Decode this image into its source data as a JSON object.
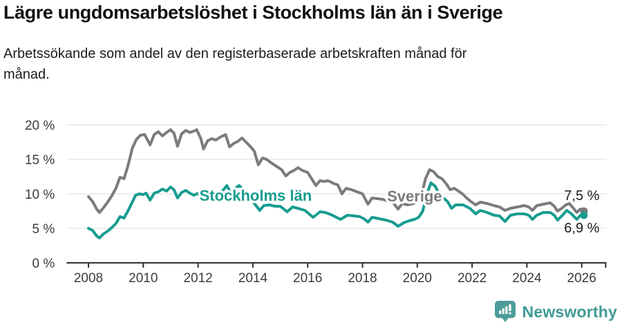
{
  "header": {
    "title": "Lägre ungdomsarbetslöshet i Stockholms län än i Sverige",
    "subtitle": "Arbetssökande som andel av den registerbaserade arbetskraften månad för månad."
  },
  "footer": {
    "brand": "Newsworthy",
    "logo_icon": "bar-chart-speech-bubble-icon",
    "brand_color": "#3f9b95"
  },
  "chart_data": {
    "type": "line",
    "title": "Lägre ungdomsarbetslöshet i Stockholms län än i Sverige",
    "subtitle": "Arbetssökande som andel av den registerbaserade arbetskraften månad för månad.",
    "unit": "%",
    "grid": true,
    "legend_position": "inline-labels",
    "x_axis": {
      "ticks": [
        2008,
        2010,
        2012,
        2014,
        2016,
        2018,
        2020,
        2022,
        2024,
        2026
      ],
      "range": [
        2007.2,
        2026.9
      ]
    },
    "y_axis": {
      "ticks": [
        0,
        5,
        10,
        15,
        20
      ],
      "tick_suffix": " %",
      "range": [
        0,
        22.5
      ]
    },
    "colors": {
      "grid": "#dddddd",
      "axis": "#2f2f2f",
      "tick_text": "#3b3b3b"
    },
    "series": [
      {
        "name": "Sverige",
        "color": "#7b7b7e",
        "end_value": 7.5,
        "end_label": "7,5 %",
        "end_label_side": "above",
        "name_label_pos": {
          "year": 2019.9,
          "pct": 9.7
        },
        "points": [
          [
            2008.0,
            9.6
          ],
          [
            2008.15,
            8.9
          ],
          [
            2008.3,
            7.8
          ],
          [
            2008.4,
            7.3
          ],
          [
            2008.55,
            8.0
          ],
          [
            2008.7,
            8.8
          ],
          [
            2008.85,
            9.7
          ],
          [
            2009.0,
            10.8
          ],
          [
            2009.15,
            12.4
          ],
          [
            2009.3,
            12.2
          ],
          [
            2009.45,
            14.2
          ],
          [
            2009.6,
            16.6
          ],
          [
            2009.75,
            17.9
          ],
          [
            2009.9,
            18.5
          ],
          [
            2010.05,
            18.6
          ],
          [
            2010.25,
            17.1
          ],
          [
            2010.4,
            18.6
          ],
          [
            2010.55,
            19.0
          ],
          [
            2010.7,
            18.4
          ],
          [
            2010.85,
            18.9
          ],
          [
            2011.0,
            19.3
          ],
          [
            2011.12,
            18.8
          ],
          [
            2011.25,
            16.9
          ],
          [
            2011.4,
            18.7
          ],
          [
            2011.55,
            19.2
          ],
          [
            2011.7,
            18.9
          ],
          [
            2011.85,
            19.1
          ],
          [
            2011.95,
            19.3
          ],
          [
            2012.1,
            18.0
          ],
          [
            2012.2,
            16.5
          ],
          [
            2012.35,
            17.7
          ],
          [
            2012.5,
            18.0
          ],
          [
            2012.65,
            17.8
          ],
          [
            2012.8,
            18.2
          ],
          [
            2013.0,
            18.6
          ],
          [
            2013.15,
            16.8
          ],
          [
            2013.3,
            17.3
          ],
          [
            2013.45,
            17.6
          ],
          [
            2013.6,
            18.1
          ],
          [
            2013.75,
            17.5
          ],
          [
            2013.9,
            16.9
          ],
          [
            2014.05,
            16.2
          ],
          [
            2014.2,
            14.2
          ],
          [
            2014.35,
            15.2
          ],
          [
            2014.5,
            15.0
          ],
          [
            2014.7,
            14.4
          ],
          [
            2014.9,
            13.9
          ],
          [
            2015.05,
            13.5
          ],
          [
            2015.2,
            12.6
          ],
          [
            2015.35,
            13.1
          ],
          [
            2015.5,
            13.4
          ],
          [
            2015.65,
            13.8
          ],
          [
            2015.8,
            13.4
          ],
          [
            2016.0,
            13.1
          ],
          [
            2016.3,
            11.2
          ],
          [
            2016.45,
            11.9
          ],
          [
            2016.6,
            11.8
          ],
          [
            2016.75,
            11.9
          ],
          [
            2016.95,
            11.5
          ],
          [
            2017.1,
            11.3
          ],
          [
            2017.25,
            10.0
          ],
          [
            2017.4,
            10.8
          ],
          [
            2017.6,
            10.6
          ],
          [
            2017.8,
            10.3
          ],
          [
            2018.0,
            10.0
          ],
          [
            2018.2,
            8.5
          ],
          [
            2018.35,
            9.4
          ],
          [
            2018.55,
            9.3
          ],
          [
            2018.75,
            9.2
          ],
          [
            2018.95,
            8.9
          ],
          [
            2019.1,
            8.8
          ],
          [
            2019.3,
            7.8
          ],
          [
            2019.45,
            8.6
          ],
          [
            2019.65,
            8.4
          ],
          [
            2019.85,
            8.6
          ],
          [
            2020.0,
            8.8
          ],
          [
            2020.15,
            9.8
          ],
          [
            2020.3,
            12.2
          ],
          [
            2020.45,
            13.5
          ],
          [
            2020.6,
            13.2
          ],
          [
            2020.75,
            12.5
          ],
          [
            2020.9,
            12.2
          ],
          [
            2021.05,
            11.5
          ],
          [
            2021.2,
            10.6
          ],
          [
            2021.35,
            10.8
          ],
          [
            2021.5,
            10.4
          ],
          [
            2021.65,
            10.0
          ],
          [
            2021.8,
            9.4
          ],
          [
            2021.95,
            8.9
          ],
          [
            2022.13,
            8.4
          ],
          [
            2022.3,
            8.8
          ],
          [
            2022.55,
            8.6
          ],
          [
            2022.8,
            8.3
          ],
          [
            2023.0,
            8.1
          ],
          [
            2023.2,
            7.6
          ],
          [
            2023.4,
            7.9
          ],
          [
            2023.65,
            8.1
          ],
          [
            2023.9,
            8.3
          ],
          [
            2024.07,
            8.1
          ],
          [
            2024.2,
            7.6
          ],
          [
            2024.36,
            8.3
          ],
          [
            2024.6,
            8.5
          ],
          [
            2024.85,
            8.7
          ],
          [
            2025.0,
            8.2
          ],
          [
            2025.12,
            7.5
          ],
          [
            2025.27,
            7.9
          ],
          [
            2025.42,
            8.4
          ],
          [
            2025.55,
            8.6
          ],
          [
            2025.7,
            7.9
          ],
          [
            2025.82,
            7.3
          ],
          [
            2025.95,
            7.8
          ],
          [
            2026.08,
            7.5
          ]
        ]
      },
      {
        "name": "Stockholms län",
        "color": "#169c8f",
        "end_value": 6.9,
        "end_label": "6,9 %",
        "end_label_side": "below",
        "name_label_pos": {
          "year": 2014.1,
          "pct": 9.8
        },
        "points": [
          [
            2008.0,
            5.0
          ],
          [
            2008.15,
            4.7
          ],
          [
            2008.3,
            3.9
          ],
          [
            2008.4,
            3.6
          ],
          [
            2008.55,
            4.2
          ],
          [
            2008.7,
            4.6
          ],
          [
            2008.85,
            5.1
          ],
          [
            2009.0,
            5.7
          ],
          [
            2009.15,
            6.7
          ],
          [
            2009.3,
            6.5
          ],
          [
            2009.45,
            7.6
          ],
          [
            2009.6,
            8.8
          ],
          [
            2009.72,
            9.8
          ],
          [
            2009.85,
            10.0
          ],
          [
            2010.0,
            9.9
          ],
          [
            2010.1,
            10.1
          ],
          [
            2010.25,
            9.1
          ],
          [
            2010.4,
            10.1
          ],
          [
            2010.55,
            10.3
          ],
          [
            2010.7,
            10.7
          ],
          [
            2010.85,
            10.4
          ],
          [
            2011.0,
            11.0
          ],
          [
            2011.12,
            10.6
          ],
          [
            2011.25,
            9.4
          ],
          [
            2011.4,
            10.2
          ],
          [
            2011.55,
            10.5
          ],
          [
            2011.7,
            10.1
          ],
          [
            2011.85,
            9.8
          ],
          [
            2012.0,
            10.1
          ],
          [
            2012.2,
            8.9
          ],
          [
            2012.35,
            9.6
          ],
          [
            2012.5,
            9.9
          ],
          [
            2012.65,
            9.8
          ],
          [
            2012.8,
            10.1
          ],
          [
            2012.95,
            10.7
          ],
          [
            2013.05,
            11.2
          ],
          [
            2013.2,
            10.1
          ],
          [
            2013.35,
            10.8
          ],
          [
            2013.5,
            11.2
          ],
          [
            2013.65,
            10.6
          ],
          [
            2013.8,
            9.7
          ],
          [
            2014.0,
            8.9
          ],
          [
            2014.25,
            7.6
          ],
          [
            2014.4,
            8.3
          ],
          [
            2014.6,
            8.4
          ],
          [
            2014.8,
            8.2
          ],
          [
            2015.0,
            8.2
          ],
          [
            2015.25,
            7.4
          ],
          [
            2015.45,
            8.1
          ],
          [
            2015.65,
            7.9
          ],
          [
            2015.9,
            7.6
          ],
          [
            2016.2,
            6.6
          ],
          [
            2016.45,
            7.4
          ],
          [
            2016.65,
            7.3
          ],
          [
            2016.9,
            6.9
          ],
          [
            2017.2,
            6.3
          ],
          [
            2017.45,
            6.9
          ],
          [
            2017.7,
            6.8
          ],
          [
            2017.9,
            6.7
          ],
          [
            2018.05,
            6.4
          ],
          [
            2018.2,
            5.9
          ],
          [
            2018.35,
            6.6
          ],
          [
            2018.6,
            6.4
          ],
          [
            2018.85,
            6.2
          ],
          [
            2019.1,
            5.9
          ],
          [
            2019.3,
            5.3
          ],
          [
            2019.5,
            5.8
          ],
          [
            2019.7,
            6.1
          ],
          [
            2019.9,
            6.3
          ],
          [
            2020.05,
            6.6
          ],
          [
            2020.2,
            7.5
          ],
          [
            2020.35,
            10.0
          ],
          [
            2020.5,
            11.6
          ],
          [
            2020.65,
            11.1
          ],
          [
            2020.8,
            10.0
          ],
          [
            2020.95,
            9.4
          ],
          [
            2021.1,
            8.9
          ],
          [
            2021.25,
            7.9
          ],
          [
            2021.4,
            8.4
          ],
          [
            2021.67,
            8.4
          ],
          [
            2021.92,
            7.9
          ],
          [
            2022.13,
            7.1
          ],
          [
            2022.3,
            7.6
          ],
          [
            2022.55,
            7.3
          ],
          [
            2022.8,
            6.9
          ],
          [
            2023.0,
            6.8
          ],
          [
            2023.2,
            6.0
          ],
          [
            2023.4,
            6.9
          ],
          [
            2023.65,
            7.1
          ],
          [
            2023.9,
            7.1
          ],
          [
            2024.07,
            6.9
          ],
          [
            2024.2,
            6.3
          ],
          [
            2024.36,
            6.9
          ],
          [
            2024.6,
            7.3
          ],
          [
            2024.85,
            7.3
          ],
          [
            2025.0,
            6.9
          ],
          [
            2025.12,
            6.2
          ],
          [
            2025.3,
            6.9
          ],
          [
            2025.45,
            7.6
          ],
          [
            2025.6,
            7.2
          ],
          [
            2025.82,
            6.3
          ],
          [
            2025.95,
            6.9
          ],
          [
            2026.08,
            6.9
          ]
        ]
      }
    ]
  }
}
